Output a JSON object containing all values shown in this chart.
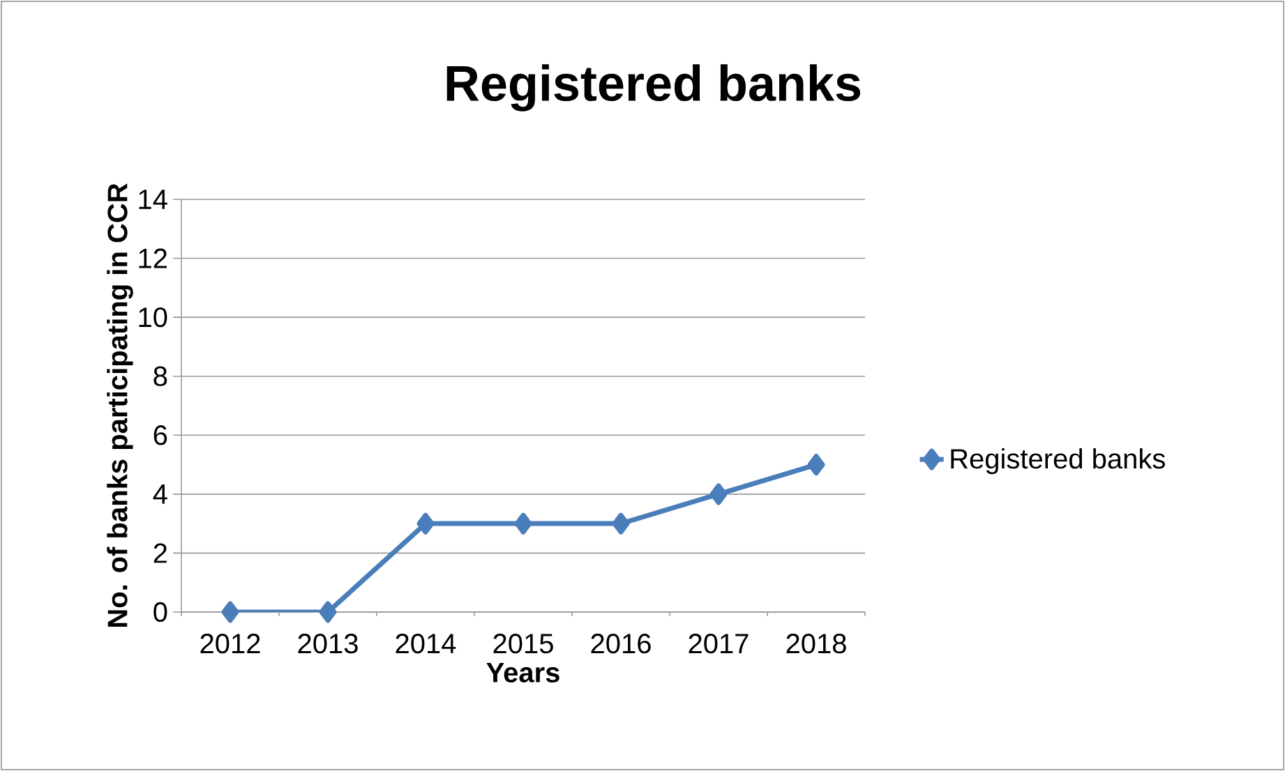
{
  "chart_data": {
    "type": "line",
    "title": "Registered banks",
    "xlabel": "Years",
    "ylabel": "No. of banks participating in CCR",
    "categories": [
      "2012",
      "2013",
      "2014",
      "2015",
      "2016",
      "2017",
      "2018"
    ],
    "series": [
      {
        "name": "Registered banks",
        "color": "#4a7ebb",
        "values": [
          0,
          0,
          3,
          3,
          3,
          4,
          5
        ]
      }
    ],
    "ylim": [
      0,
      14
    ],
    "yticks": [
      0,
      2,
      4,
      6,
      8,
      10,
      12,
      14
    ],
    "grid": "y",
    "legend": "right",
    "marker": "diamond",
    "line_style": "solid"
  }
}
